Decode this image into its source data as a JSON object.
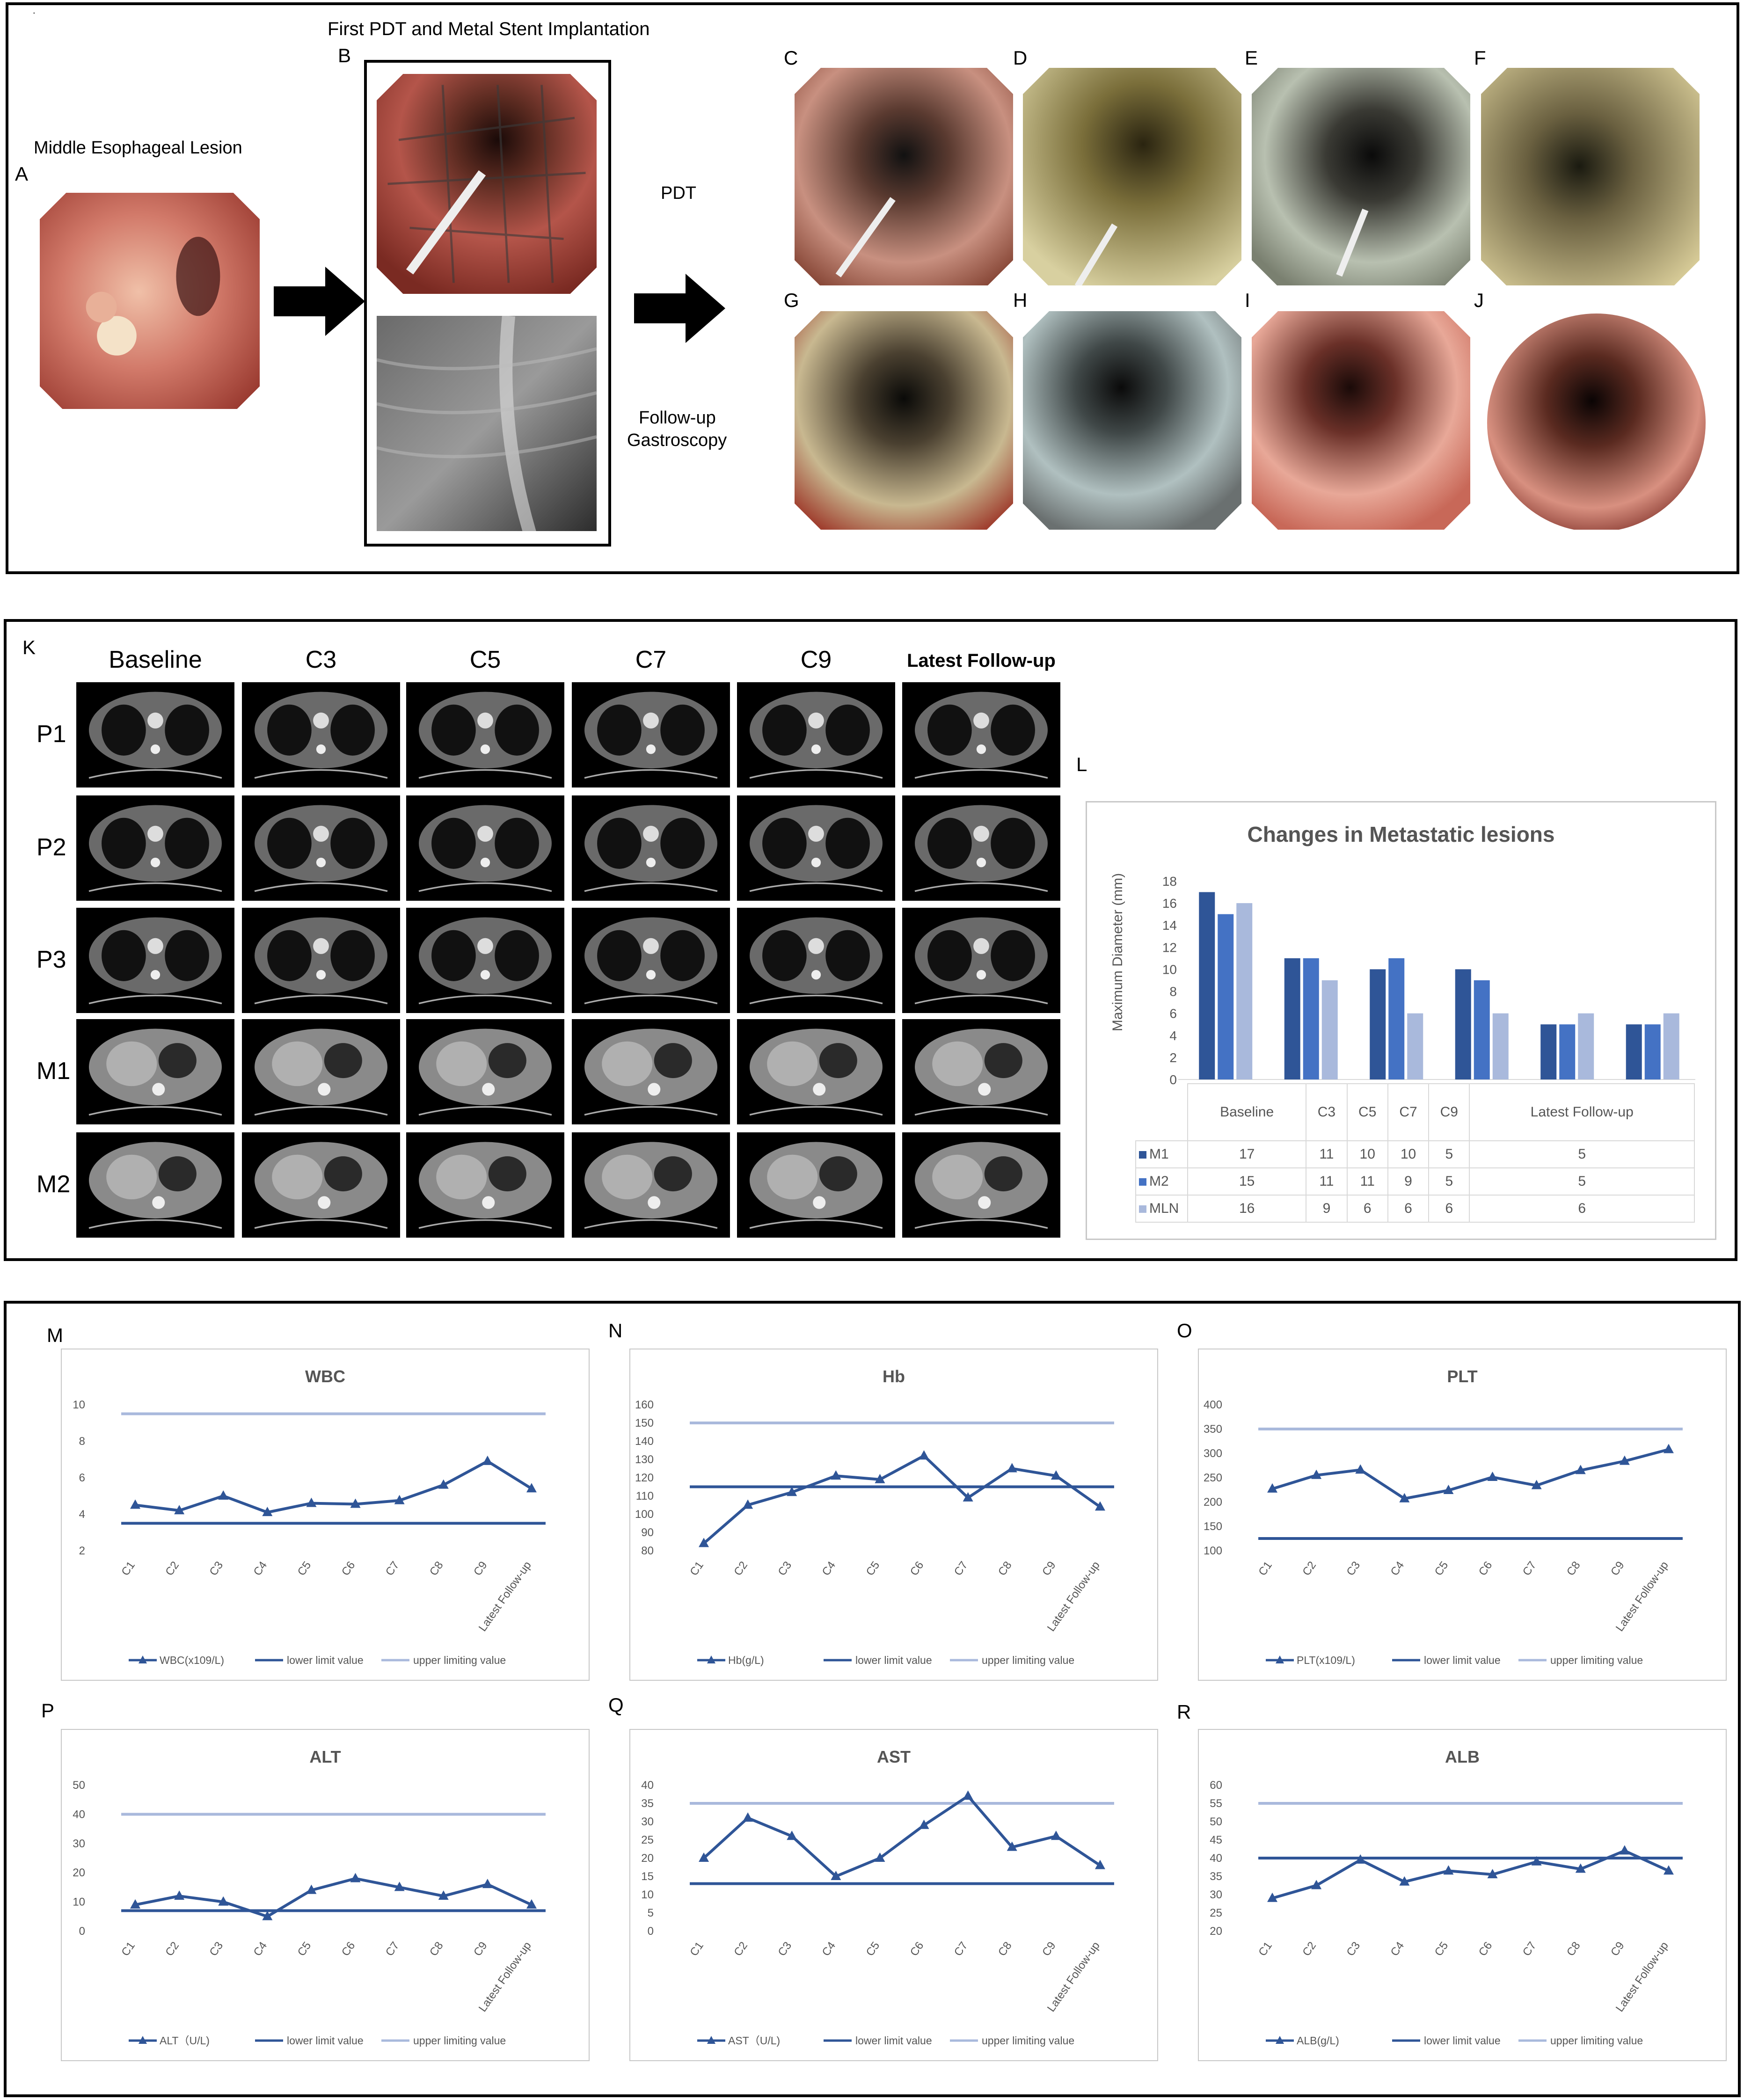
{
  "top": {
    "letters": {
      "a": "A",
      "b": "B",
      "c": "C",
      "d": "D",
      "e": "E",
      "f": "F",
      "g": "G",
      "h": "H",
      "i": "I",
      "j": "J"
    },
    "title_stent": "First PDT and Metal Stent Implantation",
    "label_lesion": "Middle Esophageal Lesion",
    "label_pdt": "PDT",
    "label_followup_1": "Follow-up",
    "label_followup_2": "Gastroscopy",
    "dot": "."
  },
  "ct": {
    "letter_k": "K",
    "letter_l": "L",
    "columns": [
      "Baseline",
      "C3",
      "C5",
      "C7",
      "C9",
      "Latest Follow-up"
    ],
    "rows": [
      "P1",
      "P2",
      "P3",
      "M1",
      "M2"
    ]
  },
  "lesions": {
    "title": "Changes in Metastatic lesions",
    "ylabel": "Maximum Diameter (mm)",
    "categories": [
      "Baseline",
      "C3",
      "C5",
      "C7",
      "C9",
      "Latest Follow-up"
    ],
    "series_labels": [
      "M1",
      "M2",
      "MLN"
    ],
    "table_rows": [
      {
        "name": "M1",
        "vals": [
          "17",
          "11",
          "10",
          "10",
          "5",
          "5"
        ]
      },
      {
        "name": "M2",
        "vals": [
          "15",
          "11",
          "11",
          "9",
          "5",
          "5"
        ]
      },
      {
        "name": "MLN",
        "vals": [
          "16",
          "9",
          "6",
          "6",
          "6",
          "6"
        ]
      }
    ],
    "colors": [
      "#2f5597",
      "#4472c4",
      "#a9b9dc"
    ]
  },
  "chart_data": [
    {
      "type": "bar",
      "title": "Changes in Metastatic lesions",
      "ylabel": "Maximum Diameter (mm)",
      "categories": [
        "Baseline",
        "C3",
        "C5",
        "C7",
        "C9",
        "Latest Follow-up"
      ],
      "series": [
        {
          "name": "M1",
          "values": [
            17,
            11,
            10,
            10,
            5,
            5
          ]
        },
        {
          "name": "M2",
          "values": [
            15,
            11,
            11,
            9,
            5,
            5
          ]
        },
        {
          "name": "MLN",
          "values": [
            16,
            9,
            6,
            6,
            6,
            6
          ]
        }
      ],
      "ylim": [
        0,
        18
      ],
      "yticks": [
        0,
        2,
        4,
        6,
        8,
        10,
        12,
        14,
        16,
        18
      ]
    },
    {
      "panel": "M",
      "type": "line",
      "title": "WBC",
      "categories": [
        "C1",
        "C2",
        "C3",
        "C4",
        "C5",
        "C6",
        "C7",
        "C8",
        "C9",
        "Latest Follow-up"
      ],
      "series": [
        {
          "name": "WBC(x109/L)",
          "values": [
            4.5,
            4.2,
            5.0,
            4.1,
            4.6,
            4.55,
            4.75,
            5.6,
            6.9,
            5.4
          ]
        }
      ],
      "lower": 3.5,
      "upper": 9.5,
      "ylim": [
        2,
        10
      ],
      "yticks": [
        2,
        4,
        6,
        8,
        10
      ],
      "legend": [
        "WBC(x109/L)",
        "lower limit value",
        "upper limiting value"
      ]
    },
    {
      "panel": "N",
      "type": "line",
      "title": "Hb",
      "categories": [
        "C1",
        "C2",
        "C3",
        "C4",
        "C5",
        "C6",
        "C7",
        "C8",
        "C9",
        "Latest Follow-up"
      ],
      "series": [
        {
          "name": "Hb(g/L)",
          "values": [
            84,
            105,
            112,
            121,
            119,
            132,
            109,
            125,
            121,
            104
          ]
        }
      ],
      "lower": 115,
      "upper": 150,
      "ylim": [
        80,
        160
      ],
      "yticks": [
        80,
        90,
        100,
        110,
        120,
        130,
        140,
        150,
        160
      ],
      "legend": [
        "Hb(g/L)",
        "lower limit value",
        "upper limiting value"
      ]
    },
    {
      "panel": "O",
      "type": "line",
      "title": "PLT",
      "categories": [
        "C1",
        "C2",
        "C3",
        "C4",
        "C5",
        "C6",
        "C7",
        "C8",
        "C9",
        "Latest Follow-up"
      ],
      "series": [
        {
          "name": "PLT(x109/L)",
          "values": [
            227,
            255,
            266,
            207,
            224,
            251,
            234,
            265,
            284,
            308
          ]
        }
      ],
      "lower": 125,
      "upper": 350,
      "ylim": [
        100,
        400
      ],
      "yticks": [
        100,
        150,
        200,
        250,
        300,
        350,
        400
      ],
      "legend": [
        "PLT(x109/L)",
        "lower limit value",
        "upper limiting value"
      ]
    },
    {
      "panel": "P",
      "type": "line",
      "title": "ALT",
      "categories": [
        "C1",
        "C2",
        "C3",
        "C4",
        "C5",
        "C6",
        "C7",
        "C8",
        "C9",
        "Latest Follow-up"
      ],
      "series": [
        {
          "name": "ALT (U/L)",
          "values": [
            9,
            12,
            10,
            5,
            14,
            18,
            15,
            12,
            16,
            9
          ]
        }
      ],
      "lower": 7,
      "upper": 40,
      "ylim": [
        0,
        50
      ],
      "yticks": [
        0,
        10,
        20,
        30,
        40,
        50
      ],
      "legend": [
        "ALT（U/L)",
        "lower limit value",
        "upper limiting value"
      ]
    },
    {
      "panel": "Q",
      "type": "line",
      "title": "AST",
      "categories": [
        "C1",
        "C2",
        "C3",
        "C4",
        "C5",
        "C6",
        "C7",
        "C8",
        "C9",
        "Latest Follow-up"
      ],
      "series": [
        {
          "name": "AST (U/L)",
          "values": [
            20,
            31,
            26,
            15,
            20,
            29,
            37,
            23,
            26,
            18
          ]
        }
      ],
      "lower": 13,
      "upper": 35,
      "ylim": [
        0,
        40
      ],
      "yticks": [
        0,
        5,
        10,
        15,
        20,
        25,
        30,
        35,
        40
      ],
      "legend": [
        "AST（U/L)",
        "lower limit value",
        "upper limiting value"
      ]
    },
    {
      "panel": "R",
      "type": "line",
      "title": "ALB",
      "categories": [
        "C1",
        "C2",
        "C3",
        "C4",
        "C5",
        "C6",
        "C7",
        "C8",
        "C9",
        "Latest Follow-up"
      ],
      "series": [
        {
          "name": "ALB(g/L)",
          "values": [
            29,
            32.5,
            39.5,
            33.5,
            36.5,
            35.5,
            39,
            37,
            42,
            36.5
          ]
        }
      ],
      "lower": 40,
      "upper": 55,
      "ylim": [
        20,
        60
      ],
      "yticks": [
        20,
        25,
        30,
        35,
        40,
        45,
        50,
        55,
        60
      ],
      "legend": [
        "ALB(g/L)",
        "lower limit value",
        "upper limiting value"
      ]
    }
  ],
  "labs": {
    "letters": {
      "m": "M",
      "n": "N",
      "o": "O",
      "p": "P",
      "q": "Q",
      "r": "R"
    },
    "colors": {
      "series": "#2f5597",
      "lower": "#2f5597",
      "upper": "#a9b9dc"
    }
  }
}
